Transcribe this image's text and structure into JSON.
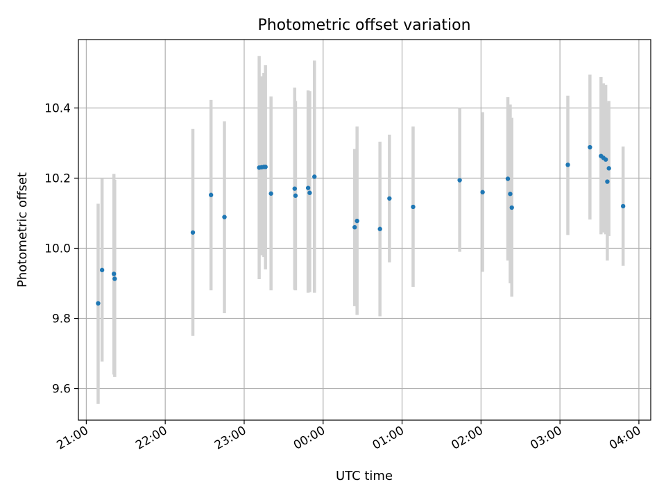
{
  "chart_data": {
    "type": "scatter",
    "title": "Photometric offset variation",
    "xlabel": "UTC time",
    "ylabel": "Photometric offset",
    "x_unit": "hours (UTC, values ≥ 24 are after midnight)",
    "xlim": [
      20.9,
      28.15
    ],
    "ylim": [
      9.51,
      10.595
    ],
    "x_ticks": [
      21,
      22,
      23,
      24,
      25,
      26,
      27,
      28
    ],
    "x_tick_labels": [
      "21:00",
      "22:00",
      "23:00",
      "00:00",
      "01:00",
      "02:00",
      "03:00",
      "04:00"
    ],
    "y_ticks": [
      9.6,
      9.8,
      10.0,
      10.2,
      10.4
    ],
    "y_tick_labels": [
      "9.6",
      "9.8",
      "10.0",
      "10.2",
      "10.4"
    ],
    "grid": true,
    "colors": {
      "points": "#1f77b4",
      "errorbars": "#d3d3d3"
    },
    "points": [
      {
        "x": 21.15,
        "y": 9.843,
        "ylow": 9.556,
        "yhigh": 10.127
      },
      {
        "x": 21.2,
        "y": 9.938,
        "ylow": 9.677,
        "yhigh": 10.2
      },
      {
        "x": 21.35,
        "y": 9.927,
        "ylow": 9.64,
        "yhigh": 10.212
      },
      {
        "x": 21.36,
        "y": 9.913,
        "ylow": 9.633,
        "yhigh": 10.195
      },
      {
        "x": 22.35,
        "y": 10.045,
        "ylow": 9.75,
        "yhigh": 10.34
      },
      {
        "x": 22.58,
        "y": 10.152,
        "ylow": 9.88,
        "yhigh": 10.423
      },
      {
        "x": 22.75,
        "y": 10.089,
        "ylow": 9.815,
        "yhigh": 10.362
      },
      {
        "x": 23.19,
        "y": 10.23,
        "ylow": 9.912,
        "yhigh": 10.548
      },
      {
        "x": 23.22,
        "y": 10.231,
        "ylow": 9.98,
        "yhigh": 10.49
      },
      {
        "x": 23.25,
        "y": 10.232,
        "ylow": 9.975,
        "yhigh": 10.5
      },
      {
        "x": 23.27,
        "y": 10.232,
        "ylow": 9.94,
        "yhigh": 10.522
      },
      {
        "x": 23.34,
        "y": 10.156,
        "ylow": 9.88,
        "yhigh": 10.433
      },
      {
        "x": 23.64,
        "y": 10.17,
        "ylow": 9.882,
        "yhigh": 10.458
      },
      {
        "x": 23.65,
        "y": 10.15,
        "ylow": 9.88,
        "yhigh": 10.42
      },
      {
        "x": 23.81,
        "y": 10.172,
        "ylow": 9.873,
        "yhigh": 10.45
      },
      {
        "x": 23.83,
        "y": 10.158,
        "ylow": 9.875,
        "yhigh": 10.448
      },
      {
        "x": 23.89,
        "y": 10.204,
        "ylow": 9.873,
        "yhigh": 10.535
      },
      {
        "x": 24.4,
        "y": 10.06,
        "ylow": 9.835,
        "yhigh": 10.283
      },
      {
        "x": 24.43,
        "y": 10.078,
        "ylow": 9.81,
        "yhigh": 10.347
      },
      {
        "x": 24.72,
        "y": 10.055,
        "ylow": 9.806,
        "yhigh": 10.304
      },
      {
        "x": 24.84,
        "y": 10.142,
        "ylow": 9.96,
        "yhigh": 10.324
      },
      {
        "x": 25.14,
        "y": 10.118,
        "ylow": 9.89,
        "yhigh": 10.347
      },
      {
        "x": 25.73,
        "y": 10.194,
        "ylow": 9.99,
        "yhigh": 10.4
      },
      {
        "x": 26.02,
        "y": 10.16,
        "ylow": 9.933,
        "yhigh": 10.388
      },
      {
        "x": 26.34,
        "y": 10.198,
        "ylow": 9.965,
        "yhigh": 10.431
      },
      {
        "x": 26.37,
        "y": 10.155,
        "ylow": 9.9,
        "yhigh": 10.41
      },
      {
        "x": 26.39,
        "y": 10.116,
        "ylow": 9.862,
        "yhigh": 10.372
      },
      {
        "x": 27.1,
        "y": 10.238,
        "ylow": 10.038,
        "yhigh": 10.435
      },
      {
        "x": 27.38,
        "y": 10.288,
        "ylow": 10.082,
        "yhigh": 10.495
      },
      {
        "x": 27.52,
        "y": 10.263,
        "ylow": 10.04,
        "yhigh": 10.488
      },
      {
        "x": 27.55,
        "y": 10.258,
        "ylow": 10.045,
        "yhigh": 10.47
      },
      {
        "x": 27.58,
        "y": 10.253,
        "ylow": 10.04,
        "yhigh": 10.466
      },
      {
        "x": 27.6,
        "y": 10.19,
        "ylow": 9.965,
        "yhigh": 10.415
      },
      {
        "x": 27.62,
        "y": 10.228,
        "ylow": 10.035,
        "yhigh": 10.42
      },
      {
        "x": 27.8,
        "y": 10.12,
        "ylow": 9.95,
        "yhigh": 10.29
      }
    ]
  }
}
